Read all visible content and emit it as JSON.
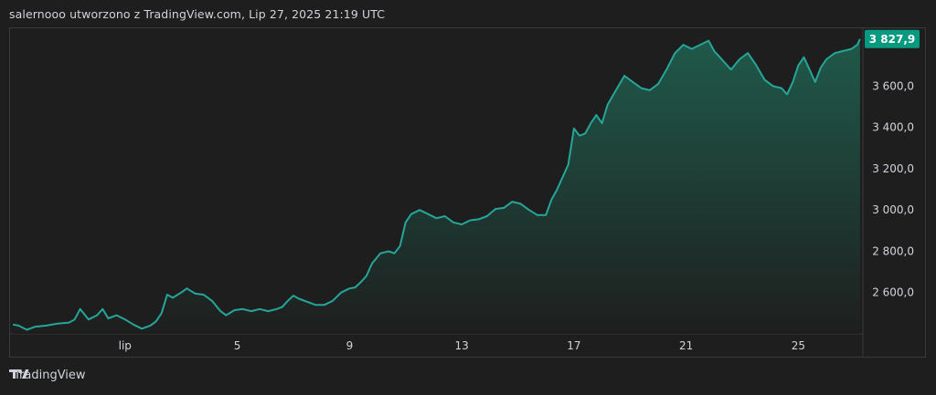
{
  "header": {
    "caption": "salernooo utworzono z TradingView.com, Lip 27, 2025 21:19 UTC"
  },
  "footer": {
    "brand": "TradingView",
    "logo_icon": "tradingview-logo-icon"
  },
  "colors": {
    "line": "#26a69a",
    "fill_top": "#1f5c4c",
    "fill_bottom": "#1e1e1e",
    "price_tag": "#089981",
    "background": "#1e1e1e",
    "text": "#d1d4dc"
  },
  "chart_data": {
    "type": "area",
    "xlim": [
      -3.1,
      27.3
    ],
    "ylim": [
      2400,
      3880
    ],
    "x_ticks": [
      {
        "value": 1,
        "label": "lip"
      },
      {
        "value": 5,
        "label": "5"
      },
      {
        "value": 9,
        "label": "9"
      },
      {
        "value": 13,
        "label": "13"
      },
      {
        "value": 17,
        "label": "17"
      },
      {
        "value": 21,
        "label": "21"
      },
      {
        "value": 25,
        "label": "25"
      }
    ],
    "y_ticks": [
      {
        "value": 2600,
        "label": "2 600,0"
      },
      {
        "value": 2800,
        "label": "2 800,0"
      },
      {
        "value": 3000,
        "label": "3 000,0"
      },
      {
        "value": 3200,
        "label": "3 200,0"
      },
      {
        "value": 3400,
        "label": "3 400,0"
      },
      {
        "value": 3600,
        "label": "3 600,0"
      }
    ],
    "last_price": {
      "value": 3827.9,
      "label": "3 827,9"
    },
    "points": [
      [
        -3.0,
        2445
      ],
      [
        -2.8,
        2440
      ],
      [
        -2.5,
        2420
      ],
      [
        -2.2,
        2435
      ],
      [
        -1.8,
        2440
      ],
      [
        -1.4,
        2450
      ],
      [
        -1.0,
        2455
      ],
      [
        -0.8,
        2470
      ],
      [
        -0.6,
        2520
      ],
      [
        -0.3,
        2470
      ],
      [
        0.0,
        2490
      ],
      [
        0.2,
        2520
      ],
      [
        0.4,
        2475
      ],
      [
        0.7,
        2490
      ],
      [
        1.0,
        2470
      ],
      [
        1.3,
        2445
      ],
      [
        1.6,
        2425
      ],
      [
        1.9,
        2440
      ],
      [
        2.1,
        2460
      ],
      [
        2.3,
        2500
      ],
      [
        2.5,
        2590
      ],
      [
        2.7,
        2575
      ],
      [
        3.0,
        2600
      ],
      [
        3.2,
        2620
      ],
      [
        3.5,
        2595
      ],
      [
        3.8,
        2590
      ],
      [
        4.1,
        2560
      ],
      [
        4.4,
        2510
      ],
      [
        4.6,
        2490
      ],
      [
        4.9,
        2515
      ],
      [
        5.2,
        2520
      ],
      [
        5.5,
        2510
      ],
      [
        5.8,
        2520
      ],
      [
        6.1,
        2510
      ],
      [
        6.4,
        2520
      ],
      [
        6.6,
        2530
      ],
      [
        6.8,
        2560
      ],
      [
        7.0,
        2585
      ],
      [
        7.2,
        2570
      ],
      [
        7.5,
        2555
      ],
      [
        7.8,
        2540
      ],
      [
        8.1,
        2540
      ],
      [
        8.4,
        2560
      ],
      [
        8.7,
        2600
      ],
      [
        9.0,
        2620
      ],
      [
        9.2,
        2625
      ],
      [
        9.4,
        2650
      ],
      [
        9.6,
        2680
      ],
      [
        9.8,
        2740
      ],
      [
        10.1,
        2790
      ],
      [
        10.4,
        2800
      ],
      [
        10.6,
        2790
      ],
      [
        10.8,
        2825
      ],
      [
        11.0,
        2940
      ],
      [
        11.2,
        2980
      ],
      [
        11.5,
        3000
      ],
      [
        11.8,
        2980
      ],
      [
        12.1,
        2960
      ],
      [
        12.4,
        2970
      ],
      [
        12.7,
        2940
      ],
      [
        13.0,
        2930
      ],
      [
        13.3,
        2950
      ],
      [
        13.6,
        2955
      ],
      [
        13.9,
        2970
      ],
      [
        14.2,
        3005
      ],
      [
        14.5,
        3010
      ],
      [
        14.8,
        3040
      ],
      [
        15.1,
        3030
      ],
      [
        15.4,
        3000
      ],
      [
        15.7,
        2975
      ],
      [
        16.0,
        2975
      ],
      [
        16.2,
        3050
      ],
      [
        16.4,
        3100
      ],
      [
        16.6,
        3160
      ],
      [
        16.8,
        3220
      ],
      [
        17.0,
        3395
      ],
      [
        17.2,
        3360
      ],
      [
        17.4,
        3370
      ],
      [
        17.6,
        3420
      ],
      [
        17.8,
        3460
      ],
      [
        18.0,
        3420
      ],
      [
        18.2,
        3510
      ],
      [
        18.5,
        3580
      ],
      [
        18.8,
        3650
      ],
      [
        19.1,
        3620
      ],
      [
        19.4,
        3590
      ],
      [
        19.7,
        3580
      ],
      [
        20.0,
        3610
      ],
      [
        20.3,
        3680
      ],
      [
        20.6,
        3760
      ],
      [
        20.9,
        3800
      ],
      [
        21.2,
        3780
      ],
      [
        21.5,
        3800
      ],
      [
        21.8,
        3820
      ],
      [
        22.0,
        3770
      ],
      [
        22.2,
        3740
      ],
      [
        22.4,
        3710
      ],
      [
        22.6,
        3680
      ],
      [
        22.9,
        3730
      ],
      [
        23.2,
        3760
      ],
      [
        23.5,
        3700
      ],
      [
        23.8,
        3630
      ],
      [
        24.1,
        3600
      ],
      [
        24.4,
        3590
      ],
      [
        24.6,
        3560
      ],
      [
        24.8,
        3620
      ],
      [
        25.0,
        3700
      ],
      [
        25.2,
        3740
      ],
      [
        25.4,
        3680
      ],
      [
        25.6,
        3620
      ],
      [
        25.8,
        3690
      ],
      [
        26.0,
        3730
      ],
      [
        26.3,
        3760
      ],
      [
        26.6,
        3770
      ],
      [
        26.9,
        3780
      ],
      [
        27.1,
        3800
      ],
      [
        27.2,
        3828
      ]
    ]
  }
}
